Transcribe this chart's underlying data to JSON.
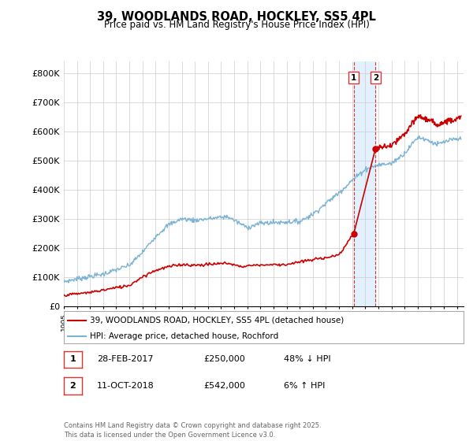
{
  "title": "39, WOODLANDS ROAD, HOCKLEY, SS5 4PL",
  "subtitle": "Price paid vs. HM Land Registry's House Price Index (HPI)",
  "ylabel_ticks": [
    "£0",
    "£100K",
    "£200K",
    "£300K",
    "£400K",
    "£500K",
    "£600K",
    "£700K",
    "£800K"
  ],
  "ytick_values": [
    0,
    100000,
    200000,
    300000,
    400000,
    500000,
    600000,
    700000,
    800000
  ],
  "ylim": [
    0,
    840000
  ],
  "xlim_start": 1995.0,
  "xlim_end": 2025.5,
  "hpi_color": "#7ab3d4",
  "price_color": "#cc0000",
  "marker1_date": 2017.12,
  "marker1_price": 250000,
  "marker2_date": 2018.78,
  "marker2_price": 542000,
  "vline_color": "#dd3333",
  "vshade_color": "#ddeeff",
  "legend_line1": "39, WOODLANDS ROAD, HOCKLEY, SS5 4PL (detached house)",
  "legend_line2": "HPI: Average price, detached house, Rochford",
  "table_row1": [
    "1",
    "28-FEB-2017",
    "£250,000",
    "48% ↓ HPI"
  ],
  "table_row2": [
    "2",
    "11-OCT-2018",
    "£542,000",
    "6% ↑ HPI"
  ],
  "footer": "Contains HM Land Registry data © Crown copyright and database right 2025.\nThis data is licensed under the Open Government Licence v3.0.",
  "background_color": "#ffffff",
  "grid_color": "#cccccc"
}
